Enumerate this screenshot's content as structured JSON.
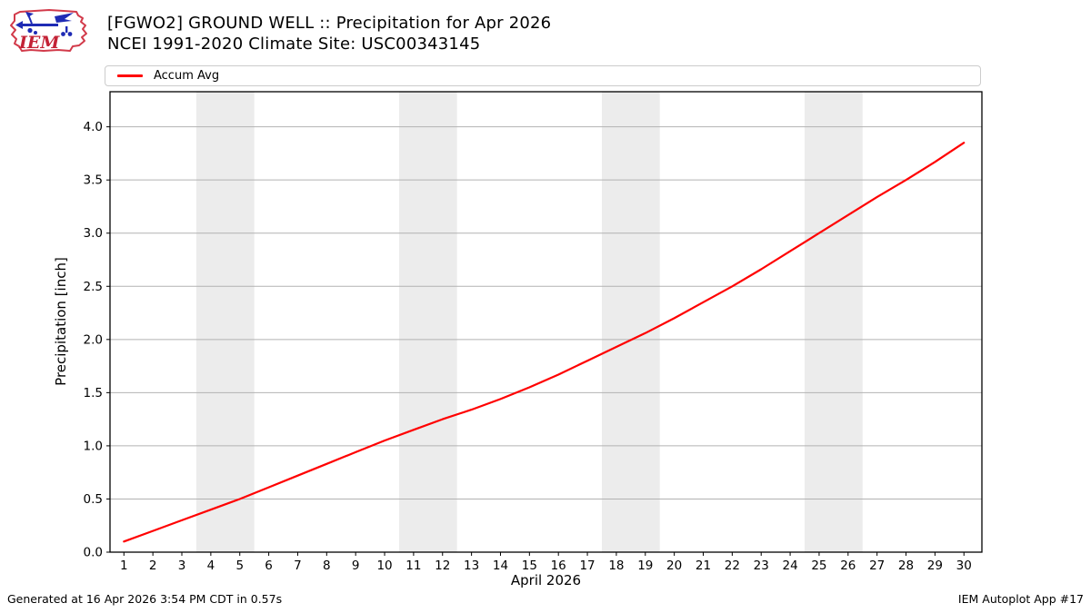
{
  "header": {
    "title_line1": "[FGWO2] GROUND WELL :: Precipitation for Apr 2026",
    "title_line2": "NCEI 1991-2020 Climate Site: USC00343145",
    "logo_text": "IEM"
  },
  "legend": {
    "items": [
      {
        "label": "Accum Avg",
        "color": "#ff0000"
      }
    ]
  },
  "footer": {
    "left": "Generated at 16 Apr 2026 3:54 PM CDT in 0.57s",
    "right": "IEM Autoplot App #17"
  },
  "chart_data": {
    "type": "line",
    "title": "[FGWO2] GROUND WELL :: Precipitation for Apr 2026",
    "subtitle": "NCEI 1991-2020 Climate Site: USC00343145",
    "xlabel": "April 2026",
    "ylabel": "Precipitation [inch]",
    "x": [
      1,
      2,
      3,
      4,
      5,
      6,
      7,
      8,
      9,
      10,
      11,
      12,
      13,
      14,
      15,
      16,
      17,
      18,
      19,
      20,
      21,
      22,
      23,
      24,
      25,
      26,
      27,
      28,
      29,
      30
    ],
    "series": [
      {
        "name": "Accum Avg",
        "color": "#ff0000",
        "values": [
          0.1,
          0.2,
          0.3,
          0.4,
          0.5,
          0.61,
          0.72,
          0.83,
          0.94,
          1.05,
          1.15,
          1.25,
          1.34,
          1.44,
          1.55,
          1.67,
          1.8,
          1.93,
          2.06,
          2.2,
          2.35,
          2.5,
          2.66,
          2.83,
          3.0,
          3.17,
          3.34,
          3.5,
          3.67,
          3.85
        ]
      }
    ],
    "xlim": [
      0.52,
      30.62
    ],
    "ylim": [
      0,
      4.33
    ],
    "yticks": [
      0,
      0.5,
      1,
      1.5,
      2,
      2.5,
      3,
      3.5,
      4
    ],
    "xticks": [
      1,
      2,
      3,
      4,
      5,
      6,
      7,
      8,
      9,
      10,
      11,
      12,
      13,
      14,
      15,
      16,
      17,
      18,
      19,
      20,
      21,
      22,
      23,
      24,
      25,
      26,
      27,
      28,
      29,
      30
    ],
    "grid": "horizontal",
    "legend_position": "top-left",
    "weekend_bands": [
      [
        3.5,
        5.5
      ],
      [
        10.5,
        12.5
      ],
      [
        17.5,
        19.5
      ],
      [
        24.5,
        26.5
      ]
    ],
    "band_color": "#ececec",
    "grid_color": "#b2b2b2",
    "axis_color": "#000000"
  }
}
